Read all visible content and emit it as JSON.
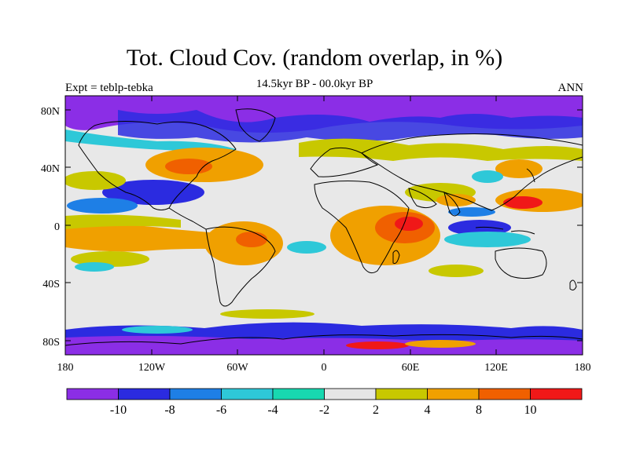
{
  "map": {
    "title": "Tot. Cloud Cov. (random overlap, in %)",
    "subtitle": "14.5kyr BP - 00.0kyr BP",
    "left_label": "Expt = teblp-tebka",
    "right_label": "ANN",
    "lat_ticks": [
      "80N",
      "40N",
      "0",
      "40S",
      "80S"
    ],
    "lon_ticks": [
      "180",
      "120W",
      "60W",
      "0",
      "60E",
      "120E",
      "180"
    ],
    "regions": [
      {
        "name": "arctic-canada",
        "level": "neg-10",
        "lon": -110,
        "lat": 75
      },
      {
        "name": "arctic-siberia",
        "level": "neg-10",
        "lon": 100,
        "lat": 78
      },
      {
        "name": "north-atlantic",
        "level": "pos-6",
        "lon": -45,
        "lat": 45
      },
      {
        "name": "eastern-pacific",
        "level": "pos-6",
        "lon": -120,
        "lat": -5
      },
      {
        "name": "amazon",
        "level": "pos-6",
        "lon": -55,
        "lat": -10
      },
      {
        "name": "southern-africa",
        "level": "pos-8",
        "lon": 30,
        "lat": -15
      },
      {
        "name": "arabian-sea",
        "level": "pos-8",
        "lon": 60,
        "lat": 5
      },
      {
        "name": "west-pacific",
        "level": "pos-10",
        "lon": 145,
        "lat": 20
      },
      {
        "name": "southern-ocean",
        "level": "neg-10",
        "lon": -100,
        "lat": -78
      }
    ]
  },
  "colorbar": {
    "labels": [
      "-10",
      "-8",
      "-6",
      "-4",
      "-2",
      "2",
      "4",
      "8",
      "10"
    ],
    "colors": [
      "#8b2ee6",
      "#2b2be0",
      "#1e7fe6",
      "#2ec8d8",
      "#18d8b0",
      "#e6e6e6",
      "#c8c800",
      "#f0a000",
      "#f06000",
      "#f01818"
    ]
  }
}
